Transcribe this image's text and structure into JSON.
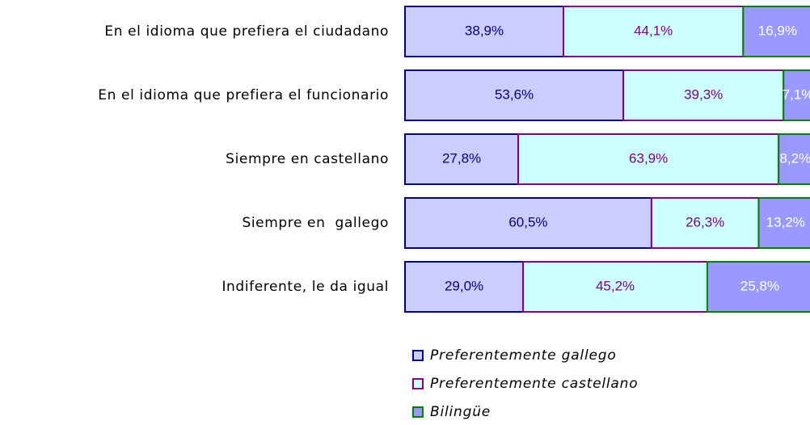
{
  "chart_data": {
    "type": "stacked_barh",
    "categories": [
      "En el idioma que prefiera el ciudadano",
      "En el idioma que prefiera el funcionario",
      "Siempre en castellano",
      "Siempre en  gallego",
      "Indiferente, le da igual"
    ],
    "series": [
      {
        "name": "Preferentemente gallego",
        "color": "#ccccff",
        "border": "#000080",
        "label_color": "#000080",
        "values": [
          38.9,
          53.6,
          27.8,
          60.5,
          29.0
        ],
        "value_labels": [
          "38,9%",
          "53,6%",
          "27,8%",
          "60,5%",
          "29,0%"
        ]
      },
      {
        "name": "Preferentemente castellano",
        "color": "#ccffff",
        "border": "#800080",
        "label_color": "#800080",
        "values": [
          44.1,
          39.3,
          63.9,
          26.3,
          45.2
        ],
        "value_labels": [
          "44,1%",
          "39,3%",
          "63,9%",
          "26,3%",
          "45,2%"
        ]
      },
      {
        "name": "Bilingüe",
        "color": "#9999ff",
        "border": "#008000",
        "label_color": "#ffffff",
        "values": [
          16.9,
          7.1,
          8.2,
          13.2,
          25.8
        ],
        "value_labels": [
          "16,9%",
          "7,1%",
          "8,2%",
          "13,2%",
          "25,8%"
        ]
      }
    ],
    "xlim": [
      0,
      100
    ]
  }
}
